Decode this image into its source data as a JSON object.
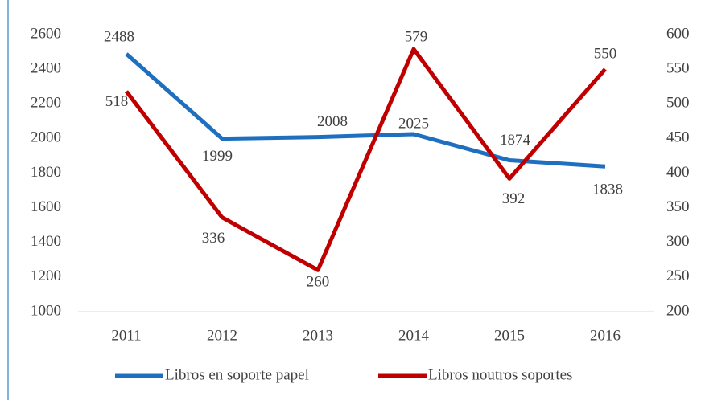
{
  "chart_data": {
    "type": "line",
    "categories": [
      "2011",
      "2012",
      "2013",
      "2014",
      "2015",
      "2016"
    ],
    "series": [
      {
        "name": "Libros en soporte papel",
        "color": "#1f6fc0",
        "values": [
          2488,
          1999,
          2008,
          2025,
          1874,
          1838
        ]
      },
      {
        "name": "Libros noutros soportes",
        "color": "#c00000",
        "values": [
          518,
          336,
          260,
          579,
          392,
          550
        ],
        "axis": "y2"
      }
    ],
    "ylim": [
      1000,
      2600
    ],
    "yticks": [
      1000,
      1200,
      1400,
      1600,
      1800,
      2000,
      2200,
      2400,
      2600
    ],
    "y2lim": [
      200,
      600
    ],
    "y2ticks": [
      200,
      250,
      300,
      350,
      400,
      450,
      500,
      550,
      600
    ],
    "legend": "bottom"
  }
}
